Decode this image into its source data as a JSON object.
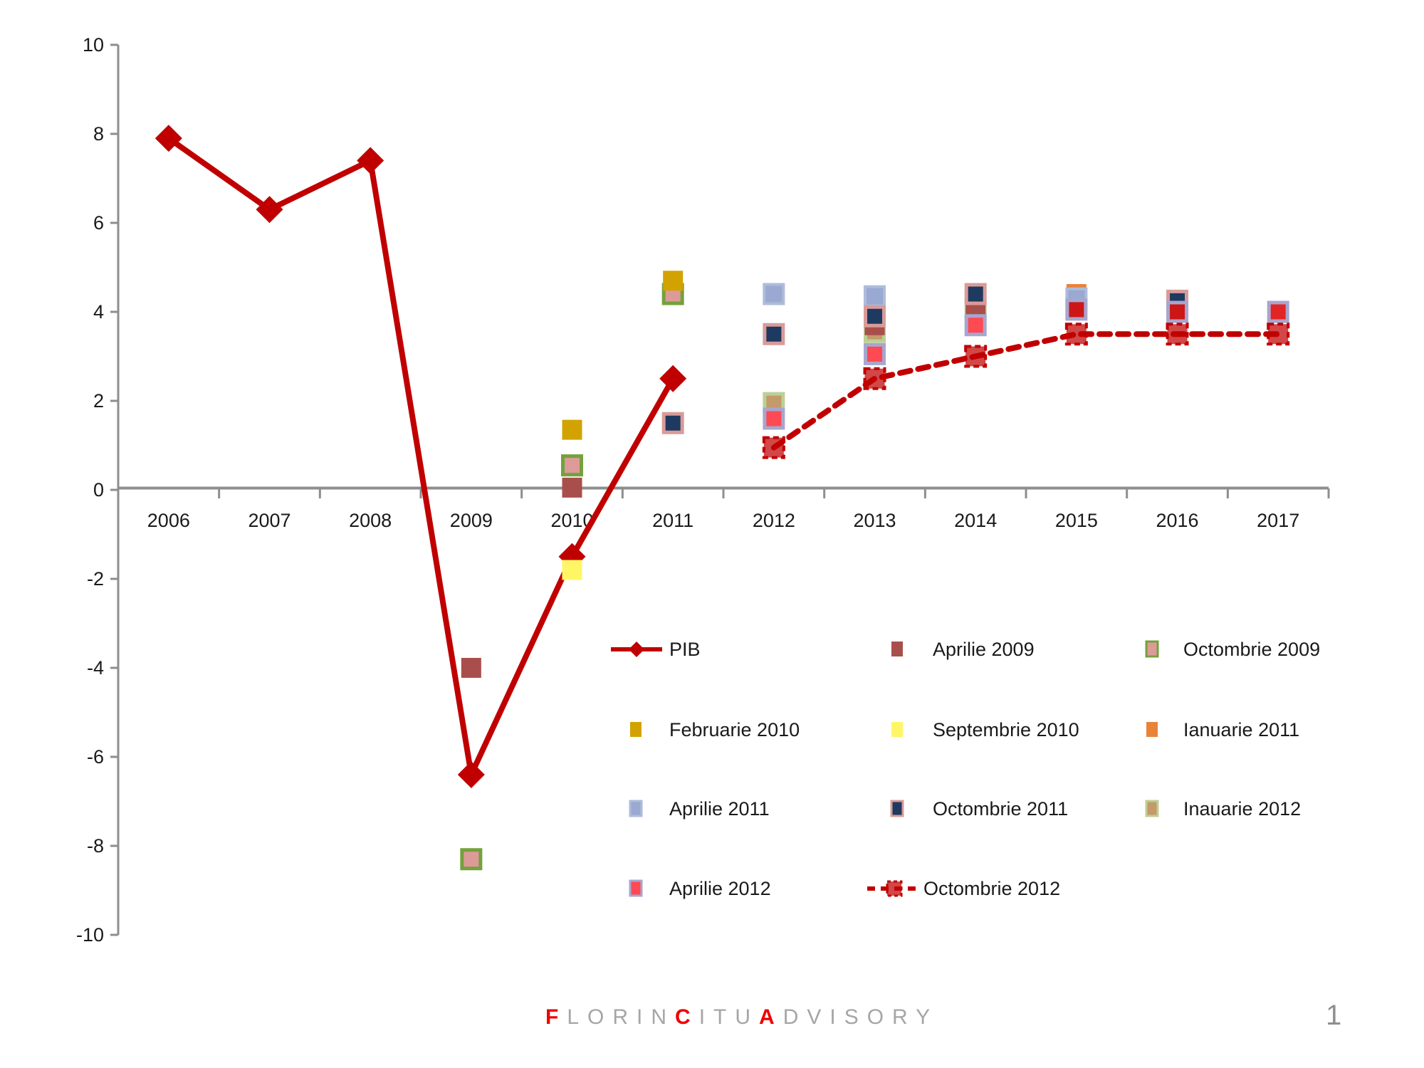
{
  "chart_data": {
    "type": "line+scatter",
    "title": "",
    "xlabel": "",
    "ylabel": "",
    "x_categories": [
      "2006",
      "2007",
      "2008",
      "2009",
      "2010",
      "2011",
      "2012",
      "2013",
      "2014",
      "2015",
      "2016",
      "2017"
    ],
    "ylim": [
      -10,
      10
    ],
    "y_ticks": [
      10,
      8,
      6,
      4,
      2,
      0,
      -2,
      -4,
      -6,
      -8,
      -10
    ],
    "grid": "off",
    "axis_color": "#8e8e8e",
    "label_color": "#1a1a1a",
    "series": [
      {
        "key": "pib",
        "name": "PIB",
        "type": "line",
        "color": "#C00000",
        "marker": "diamond",
        "points": {
          "2006": 7.9,
          "2007": 6.3,
          "2008": 7.4,
          "2009": -6.4,
          "2010": -1.5,
          "2011": 2.5
        }
      },
      {
        "key": "apr2009",
        "name": "Aprilie 2009",
        "type": "scatter",
        "fill": "#A84F4C",
        "stroke": "none",
        "stroke_width": 0,
        "size": 28,
        "points": {
          "2009": -4.0,
          "2010": 0.05,
          "2013": 3.7,
          "2014": 4.15
        }
      },
      {
        "key": "oct2009",
        "name": "Octombrie 2009",
        "type": "scatter",
        "fill": "#DC9B98",
        "stroke": "#74A13C",
        "stroke_width": 5,
        "size": 26,
        "points": {
          "2009": -8.3,
          "2010": 0.55,
          "2011": 4.4
        }
      },
      {
        "key": "feb2010",
        "name": "Februarie 2010",
        "type": "scatter",
        "fill": "#D2A300",
        "stroke": "none",
        "stroke_width": 0,
        "size": 28,
        "points": {
          "2010": 1.35,
          "2011": 4.7
        }
      },
      {
        "key": "sep2010",
        "name": "Septembrie 2010",
        "type": "scatter",
        "fill": "#FFF666",
        "stroke": "none",
        "stroke_width": 0,
        "size": 28,
        "points": {
          "2010": -1.8
        }
      },
      {
        "key": "ian2011",
        "name": "Ianuarie 2011",
        "type": "scatter",
        "fill": "#E8833A",
        "stroke": "none",
        "stroke_width": 0,
        "size": 28,
        "points": {
          "2014": 3.85,
          "2015": 4.4
        }
      },
      {
        "key": "apr2011",
        "name": "Aprilie 2011",
        "type": "scatter",
        "fill": "#99A9D1",
        "stroke": "#AEBBDB",
        "stroke_width": 4,
        "size": 27,
        "points": {
          "2012": 4.4,
          "2013": 4.35,
          "2015": 4.3
        }
      },
      {
        "key": "oct2011",
        "name": "Octombrie 2011",
        "type": "scatter",
        "fill": "#1E3A60",
        "stroke": "#D99B99",
        "stroke_width": 5,
        "size": 26,
        "points": {
          "2011": 1.5,
          "2012": 3.5,
          "2013": 3.9,
          "2014": 4.4,
          "2016": 4.25
        }
      },
      {
        "key": "inau2012",
        "name": "Inauarie 2012",
        "type": "scatter",
        "fill": "#C49A6B",
        "stroke": "#BCD096",
        "stroke_width": 5,
        "size": 26,
        "points": {
          "2012": 1.95,
          "2013": 3.55,
          "2014": 4.05
        }
      },
      {
        "key": "apr2012",
        "name": "Aprilie 2012",
        "type": "scatter",
        "fill": "#FF4953",
        "stroke": "#A7A6CE",
        "stroke_width": 5,
        "size": 26,
        "points": {
          "2012": 1.6,
          "2013": 3.05,
          "2014": 3.7,
          "2015": 4.05,
          "2016": 4.0,
          "2017": 4.0
        }
      },
      {
        "key": "oct2012",
        "name": "Octombrie 2012",
        "type": "dashed-line",
        "color": "#C00000",
        "marker_fill": "rgba(192,0,0,0.72)",
        "size": 28,
        "points": {
          "2012": 0.95,
          "2013": 2.5,
          "2014": 3.0,
          "2015": 3.5,
          "2016": 3.5,
          "2017": 3.5
        }
      }
    ],
    "paint_order": {
      "2009": [
        "apr2009",
        "oct2009"
      ],
      "2010": [
        "feb2010",
        "apr2009",
        "oct2009",
        "sep2010"
      ],
      "2011": [
        "oct2009",
        "feb2010",
        "oct2011"
      ],
      "2012": [
        "apr2011",
        "oct2011",
        "inau2012",
        "apr2012"
      ],
      "2013": [
        "apr2011",
        "inau2012",
        "apr2009",
        "oct2011",
        "apr2012"
      ],
      "2014": [
        "ian2011",
        "inau2012",
        "apr2009",
        "oct2011",
        "apr2012"
      ],
      "2015": [
        "ian2011",
        "apr2011",
        "apr2012"
      ],
      "2016": [
        "oct2011",
        "apr2012"
      ],
      "2017": [
        "apr2012"
      ]
    },
    "fill_overrides": [
      {
        "series": "apr2012",
        "year": "2015",
        "fill": "#CD1717"
      },
      {
        "series": "apr2012",
        "year": "2016",
        "fill": "#CD1616"
      },
      {
        "series": "apr2012",
        "year": "2017",
        "fill": "#E32424"
      }
    ],
    "legend_position": "inside-lower-center"
  },
  "legend": {
    "rows": [
      {
        "items": [
          {
            "col": 0,
            "series": "pib",
            "label": "PIB"
          },
          {
            "col": 1,
            "series": "apr2009",
            "label": "Aprilie 2009"
          },
          {
            "col": 2,
            "series": "oct2009",
            "label": "Octombrie 2009"
          }
        ]
      },
      {
        "items": [
          {
            "col": 0,
            "series": "feb2010",
            "label": "Februarie 2010"
          },
          {
            "col": 1,
            "series": "sep2010",
            "label": "Septembrie 2010"
          },
          {
            "col": 2,
            "series": "ian2011",
            "label": "Ianuarie 2011"
          }
        ]
      },
      {
        "items": [
          {
            "col": 0,
            "series": "apr2011",
            "label": "Aprilie 2011"
          },
          {
            "col": 1,
            "series": "oct2011",
            "label": "Octombrie 2011"
          },
          {
            "col": 2,
            "series": "inau2012",
            "label": "Inauarie 2012"
          }
        ]
      },
      {
        "items": [
          {
            "col": 0,
            "series": "apr2012",
            "label": "Aprilie 2012"
          },
          {
            "col": 1,
            "series": "oct2012",
            "label": "Octombrie 2012"
          }
        ]
      }
    ]
  },
  "footer": {
    "brand_segments": [
      {
        "text": "F",
        "red": true
      },
      {
        "text": "LORIN",
        "red": false
      },
      {
        "text": "C",
        "red": true
      },
      {
        "text": "ITU",
        "red": false
      },
      {
        "text": "A",
        "red": true
      },
      {
        "text": "DVISORY",
        "red": false
      }
    ],
    "brand_gray": "#A6A6A6",
    "brand_red": "#EE0000",
    "page_number": "1"
  }
}
